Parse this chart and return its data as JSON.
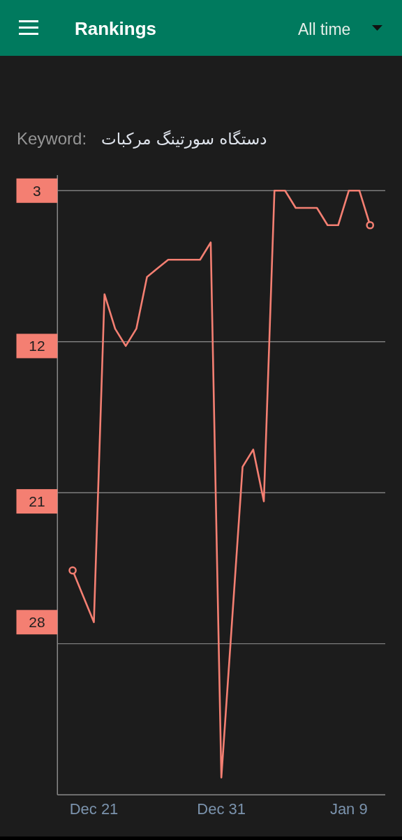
{
  "chart_data": {
    "type": "line",
    "title": "Rankings",
    "annotations": [
      "All time",
      "Keyword:",
      "دستگاه سورتینگ مرکبات"
    ],
    "categories": [
      null,
      null,
      "Dec 21",
      null,
      null,
      null,
      null,
      null,
      null,
      null,
      null,
      null,
      null,
      null,
      "Dec 31",
      null,
      null,
      null,
      null,
      null,
      null,
      null,
      null,
      null,
      null,
      null,
      "Jan 9",
      null,
      null
    ],
    "series": [
      {
        "color": "#f47f72",
        "line_style": "solid",
        "values": [
          25,
          26.5,
          28,
          9,
          11,
          12,
          11,
          8,
          7.5,
          7,
          7,
          7,
          7,
          6,
          37,
          28,
          19,
          18,
          21,
          3,
          3,
          4,
          4,
          4,
          5,
          5,
          3,
          3,
          5
        ]
      },
      {
        "type": "scatter",
        "color": "#f47f72",
        "marker": "circle",
        "values": [
          25,
          null,
          null,
          null,
          null,
          null,
          null,
          null,
          null,
          null,
          null,
          null,
          null,
          null,
          null,
          null,
          null,
          null,
          null,
          null,
          null,
          null,
          null,
          null,
          null,
          null,
          null,
          null,
          5
        ]
      }
    ],
    "ylim": [
      38,
      2.1
    ],
    "yticks": [
      3,
      12,
      21,
      28
    ],
    "ref_lines": [
      {
        "axis": "y",
        "value": 3,
        "color": "#7d7d7d"
      },
      {
        "axis": "y",
        "value": 11.75,
        "color": "#7d7d7d"
      },
      {
        "axis": "y",
        "value": 20.5,
        "color": "#7d7d7d"
      },
      {
        "axis": "y",
        "value": 29.25,
        "color": "#7d7d7d"
      }
    ]
  }
}
